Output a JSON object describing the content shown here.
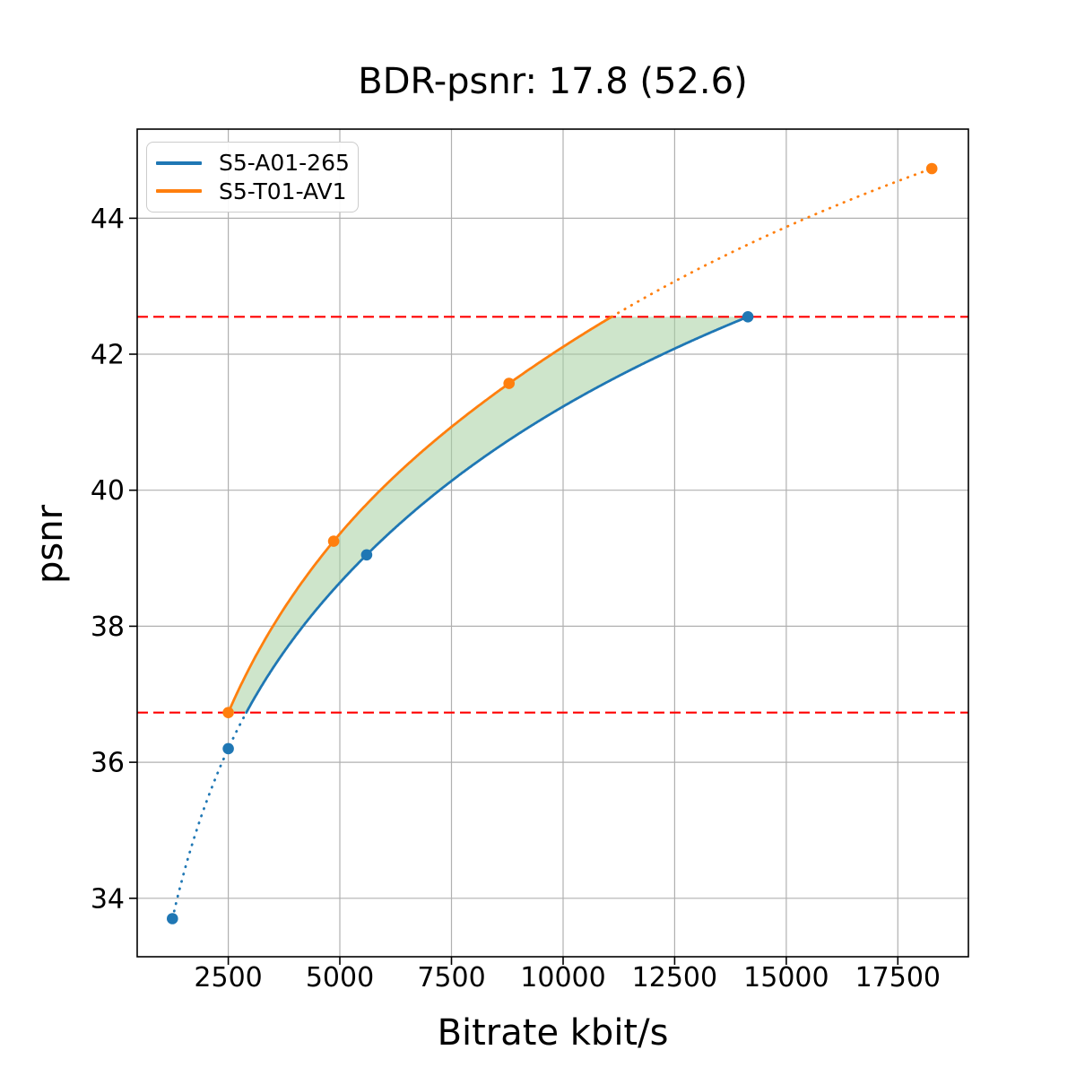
{
  "chart_data": {
    "type": "line",
    "title": "BDR-psnr: 17.8 (52.6)",
    "xlabel": "Bitrate kbit/s",
    "ylabel": "psnr",
    "xlim": [
      460,
      19080
    ],
    "ylim": [
      33.14,
      45.31
    ],
    "xticks": [
      2500,
      5000,
      7500,
      10000,
      12500,
      15000,
      17500
    ],
    "yticks": [
      34,
      36,
      38,
      40,
      42,
      44
    ],
    "grid": true,
    "grid_color": "#b0b0b0",
    "legend_position": "upper-left",
    "series": [
      {
        "name": "S5-A01-265",
        "color": "#1f77b4",
        "marker": "circle",
        "points": [
          [
            1250,
            33.7
          ],
          [
            2500,
            36.2
          ],
          [
            5600,
            39.05
          ],
          [
            14140,
            42.55
          ]
        ],
        "style_inside_bounds": "solid",
        "style_outside_bounds": "dotted"
      },
      {
        "name": "S5-T01-AV1",
        "color": "#ff7f0e",
        "marker": "circle",
        "points": [
          [
            2500,
            36.73
          ],
          [
            4860,
            39.25
          ],
          [
            8790,
            41.57
          ],
          [
            18260,
            44.73
          ]
        ],
        "style_inside_bounds": "solid",
        "style_outside_bounds": "dotted"
      }
    ],
    "bd_bounds": {
      "lower": 36.73,
      "upper": 42.55,
      "line_color": "#ff0000",
      "line_style": "dashed"
    },
    "shaded_region": {
      "between": [
        "S5-T01-AV1",
        "S5-A01-265"
      ],
      "color": "#a5cfa1",
      "alpha": 0.55
    }
  }
}
